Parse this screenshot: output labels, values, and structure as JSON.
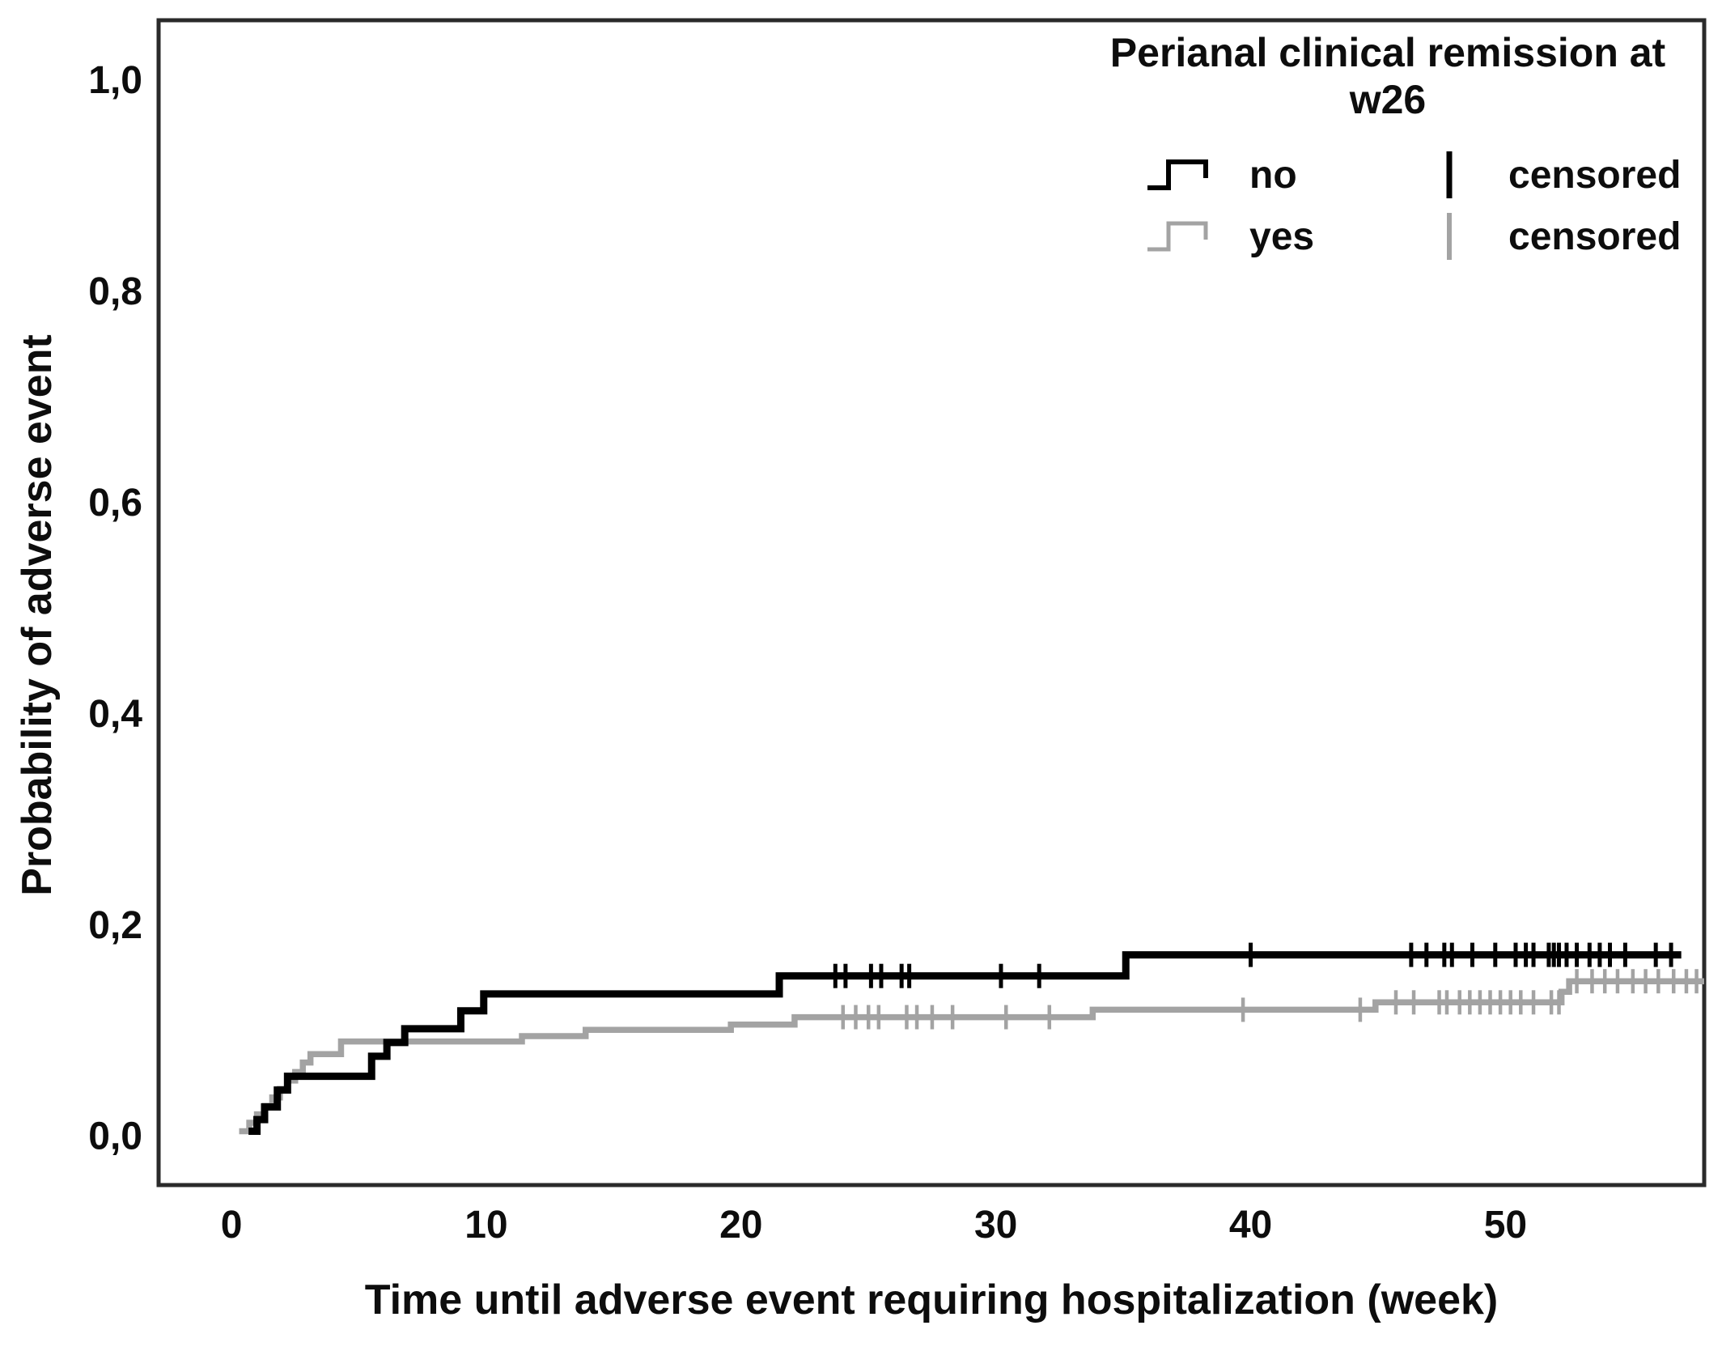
{
  "chart_data": {
    "type": "line",
    "subtype": "kaplan-meier-cumulative-incidence-step",
    "title": "",
    "xlabel": "Time until adverse event requiring hospitalization (week)",
    "ylabel": "Probability of adverse event",
    "xlim": [
      -2.86,
      57.8
    ],
    "ylim": [
      -0.047,
      1.056
    ],
    "grid": false,
    "xticks": {
      "values": [
        0,
        10,
        20,
        30,
        40,
        50
      ],
      "labels": [
        "0",
        "10",
        "20",
        "30",
        "40",
        "50"
      ]
    },
    "yticks": {
      "values": [
        0.0,
        0.2,
        0.4,
        0.6,
        0.8,
        1.0
      ],
      "labels": [
        "0,0",
        "0,2",
        "0,4",
        "0,6",
        "0,8",
        "1,0"
      ]
    },
    "frame_color": "#2a2a2a",
    "text_color": "#0d0d0d",
    "legend": {
      "position": "top-right",
      "title_lines": [
        "Perianal clinical remission at",
        "w26"
      ],
      "entries": [
        {
          "label": "no",
          "type": "step",
          "color": "#000000"
        },
        {
          "label": "yes",
          "type": "step",
          "color": "#a3a3a3"
        },
        {
          "label": "censored",
          "type": "tick",
          "color": "#000000"
        },
        {
          "label": "censored",
          "type": "tick",
          "color": "#a3a3a3"
        }
      ]
    },
    "series": [
      {
        "name": "no",
        "color": "#000000",
        "linewidth": 9,
        "end_week": 56.9,
        "steps": [
          [
            0.67,
            0.004
          ],
          [
            1.0,
            0.015
          ],
          [
            1.3,
            0.027
          ],
          [
            1.8,
            0.043
          ],
          [
            2.2,
            0.056
          ],
          [
            5.5,
            0.075
          ],
          [
            6.1,
            0.088
          ],
          [
            6.8,
            0.101
          ],
          [
            9.0,
            0.118
          ],
          [
            9.9,
            0.134
          ],
          [
            21.5,
            0.151
          ],
          [
            35.1,
            0.171
          ]
        ],
        "censored_weeks": [
          23.7,
          24.1,
          25.1,
          25.5,
          26.3,
          26.6,
          30.2,
          31.7,
          40.0,
          46.3,
          46.9,
          47.6,
          47.9,
          48.7,
          49.6,
          50.4,
          50.8,
          51.1,
          51.7,
          51.9,
          52.1,
          52.4,
          52.8,
          53.3,
          53.7,
          54.1,
          54.7,
          55.9,
          56.5
        ]
      },
      {
        "name": "yes",
        "color": "#a3a3a3",
        "linewidth": 7.5,
        "end_week": 57.8,
        "steps": [
          [
            0.3,
            0.004
          ],
          [
            0.7,
            0.012
          ],
          [
            1.0,
            0.02
          ],
          [
            1.3,
            0.028
          ],
          [
            1.6,
            0.036
          ],
          [
            1.9,
            0.044
          ],
          [
            2.2,
            0.052
          ],
          [
            2.5,
            0.06
          ],
          [
            2.8,
            0.069
          ],
          [
            3.1,
            0.077
          ],
          [
            4.3,
            0.089
          ],
          [
            11.4,
            0.094
          ],
          [
            13.9,
            0.1
          ],
          [
            19.6,
            0.105
          ],
          [
            22.1,
            0.112
          ],
          [
            33.8,
            0.119
          ],
          [
            44.9,
            0.126
          ],
          [
            52.2,
            0.136
          ],
          [
            52.5,
            0.146
          ]
        ],
        "censored_weeks": [
          24.0,
          24.5,
          25.0,
          25.4,
          26.5,
          26.9,
          27.5,
          28.3,
          30.4,
          32.1,
          39.7,
          44.3,
          45.7,
          46.4,
          47.4,
          47.7,
          48.2,
          48.6,
          49.0,
          49.4,
          49.8,
          50.2,
          50.6,
          51.1,
          51.8,
          52.1,
          52.8,
          53.4,
          53.9,
          54.4,
          55.0,
          55.5,
          56.0,
          56.6,
          57.1,
          57.5
        ]
      }
    ]
  }
}
